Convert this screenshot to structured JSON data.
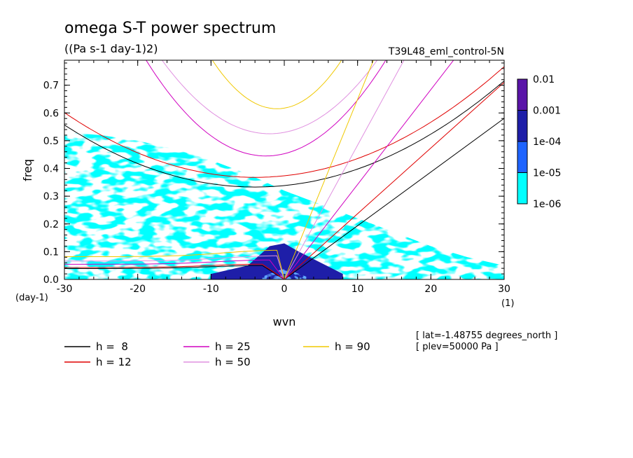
{
  "chart_data": {
    "type": "heatmap",
    "title": "omega S-T power spectrum",
    "subtitle": "((Pa s-1 day-1)2)",
    "dataset": "T39L48_eml_control-5N",
    "xlabel": "wvn",
    "ylabel": "freq",
    "x_unit": "(1)",
    "y_unit": "(day-1)",
    "xlim": [
      -30,
      30
    ],
    "ylim": [
      0,
      0.79
    ],
    "x_ticks": [
      -30,
      -20,
      -10,
      0,
      10,
      20,
      30
    ],
    "x_tick_labels": [
      "-30",
      "-20",
      "-10",
      "0",
      "10",
      "20",
      "30"
    ],
    "y_ticks": [
      0,
      0.1,
      0.2,
      0.3,
      0.4,
      0.5,
      0.6,
      0.7
    ],
    "y_tick_labels": [
      "0.0",
      "0.1",
      "0.2",
      "0.3",
      "0.4",
      "0.5",
      "0.6",
      "0.7"
    ],
    "colorbar": {
      "levels": [
        "0.01",
        "0.001",
        "1e-04",
        "1e-05",
        "1e-06"
      ],
      "colors": [
        "#5a14a8",
        "#1e1ea8",
        "#1e64ff",
        "#00ffff"
      ]
    },
    "power_regions": [
      {
        "level": "1e-06",
        "wvn": [
          -30,
          -25,
          -20,
          -15,
          -10,
          -5,
          0,
          5,
          10,
          15,
          20,
          25,
          30
        ],
        "freq_top": [
          0.53,
          0.52,
          0.5,
          0.47,
          0.43,
          0.38,
          0.32,
          0.27,
          0.22,
          0.17,
          0.12,
          0.08,
          0.05
        ]
      },
      {
        "level": "1e-05",
        "wvn": [
          -10,
          -5,
          -2,
          0,
          2,
          5,
          8
        ],
        "freq_top": [
          0.02,
          0.05,
          0.12,
          0.13,
          0.1,
          0.06,
          0.02
        ]
      },
      {
        "level": "1e-04",
        "wvn": [
          -3,
          -1,
          0,
          1,
          3
        ],
        "freq_top": [
          0.01,
          0.03,
          0.04,
          0.03,
          0.01
        ]
      }
    ],
    "legend_items": [
      {
        "label": "h =  8",
        "color": "#000000"
      },
      {
        "label": "h = 12",
        "color": "#e00000"
      },
      {
        "label": "h = 25",
        "color": "#d000c0"
      },
      {
        "label": "h = 50",
        "color": "#e090e0"
      },
      {
        "label": "h = 90",
        "color": "#f0c800"
      }
    ],
    "curves": [
      {
        "h": 8,
        "color": "#000000",
        "width": 1.0,
        "parabola": {
          "x0": -4.0,
          "y0": 0.333,
          "a": 0.000331
        },
        "kelvin_slope": 0.01935,
        "low": {
          "ymax": 0.05,
          "xlo": -30,
          "xhi": -3
        }
      },
      {
        "h": 12,
        "color": "#e00000",
        "width": 1.0,
        "parabola": {
          "x0": -4.0,
          "y0": 0.368,
          "a": 0.000345
        },
        "kelvin_slope": 0.02368,
        "low": {
          "ymax": 0.055,
          "xlo": -30,
          "xhi": -3
        }
      },
      {
        "h": 25,
        "color": "#d000c0",
        "width": 1.0,
        "parabola": {
          "x0": -2.5,
          "y0": 0.445,
          "a": 0.00129
        },
        "kelvin_slope": 0.03421,
        "low": {
          "ymax": 0.07,
          "xlo": -30,
          "xhi": -2
        }
      },
      {
        "h": 50,
        "color": "#e090e0",
        "width": 1.0,
        "parabola": {
          "x0": -2.0,
          "y0": 0.525,
          "a": 0.00123
        },
        "kelvin_slope": 0.04838,
        "low": {
          "ymax": 0.085,
          "xlo": -30,
          "xhi": -1
        }
      },
      {
        "h": 90,
        "color": "#f0c800",
        "width": 1.0,
        "parabola": {
          "x0": -1.0,
          "y0": 0.615,
          "a": 0.00225
        },
        "kelvin_slope": 0.06491,
        "low": {
          "ymax": 0.105,
          "xlo": -30,
          "xhi": -1
        }
      }
    ],
    "annotations": [
      "[ lat=-1.48755 degrees_north ]",
      "[ plev=50000 Pa ]"
    ]
  }
}
